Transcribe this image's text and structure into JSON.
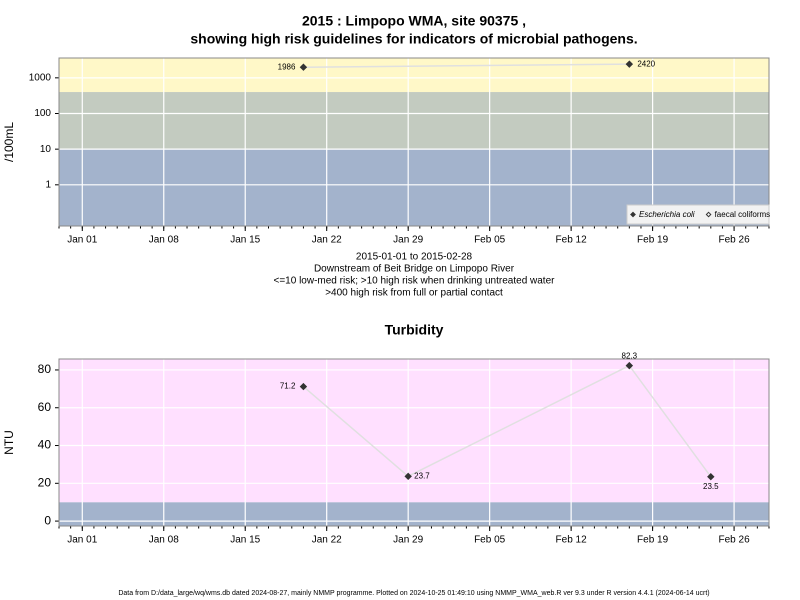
{
  "chart_data": [
    {
      "type": "line",
      "title": "2015 : Limpopo WMA, site 90375 ,",
      "subtitle": "showing high risk guidelines for indicators of microbial pathogens.",
      "ylabel": "/100mL",
      "log_y": true,
      "x": [
        "2015-01-20",
        "2015-02-17"
      ],
      "series": [
        {
          "name": "Escherichia coli",
          "color": "#333333",
          "marker": "filled",
          "values": [
            1986,
            2420
          ]
        },
        {
          "name": "faecal coliforms",
          "color": "#333333",
          "marker": "open",
          "values": [
            null,
            null
          ]
        }
      ],
      "line_color": "#e0e0e0",
      "xlim": [
        "2014-12-30",
        "2015-03-01"
      ],
      "xticks": [
        {
          "value": "2015-01-01",
          "label": "Jan 01"
        },
        {
          "value": "2015-01-08",
          "label": "Jan 08"
        },
        {
          "value": "2015-01-15",
          "label": "Jan 15"
        },
        {
          "value": "2015-01-22",
          "label": "Jan 22"
        },
        {
          "value": "2015-01-29",
          "label": "Jan 29"
        },
        {
          "value": "2015-02-05",
          "label": "Feb 05"
        },
        {
          "value": "2015-02-12",
          "label": "Feb 12"
        },
        {
          "value": "2015-02-19",
          "label": "Feb 19"
        },
        {
          "value": "2015-02-26",
          "label": "Feb 26"
        }
      ],
      "ylim": [
        0.07,
        3600
      ],
      "yticks": [
        1,
        10,
        100,
        1000
      ],
      "grid": true,
      "bands": [
        {
          "from": 0.07,
          "to": 10,
          "color": "#a3b3cc"
        },
        {
          "from": 10,
          "to": 400,
          "color": "#c3cbc0"
        },
        {
          "from": 400,
          "to": 3600,
          "color": "#fff8c8"
        }
      ],
      "legend": "bottom-right",
      "annotations": [
        "2015-01-01 to 2015-02-28",
        "Downstream of Beit Bridge on Limpopo River",
        "<=10 low-med risk; >10 high risk when drinking untreated water",
        ">400 high risk from full or partial contact"
      ]
    },
    {
      "type": "line",
      "title": "Turbidity",
      "ylabel": "NTU",
      "x": [
        "2015-01-20",
        "2015-01-29",
        "2015-02-17",
        "2015-02-24"
      ],
      "values": [
        71.2,
        23.7,
        82.3,
        23.5
      ],
      "color": "#333333",
      "line_color": "#e0e0e0",
      "xlim": [
        "2014-12-30",
        "2015-03-01"
      ],
      "xticks": [
        {
          "value": "2015-01-01",
          "label": "Jan 01"
        },
        {
          "value": "2015-01-08",
          "label": "Jan 08"
        },
        {
          "value": "2015-01-15",
          "label": "Jan 15"
        },
        {
          "value": "2015-01-22",
          "label": "Jan 22"
        },
        {
          "value": "2015-01-29",
          "label": "Jan 29"
        },
        {
          "value": "2015-02-05",
          "label": "Feb 05"
        },
        {
          "value": "2015-02-12",
          "label": "Feb 12"
        },
        {
          "value": "2015-02-19",
          "label": "Feb 19"
        },
        {
          "value": "2015-02-26",
          "label": "Feb 26"
        }
      ],
      "ylim": [
        -2.6,
        85.8
      ],
      "yticks": [
        0,
        20,
        40,
        60,
        80
      ],
      "grid": true,
      "bands": [
        {
          "from": -2.6,
          "to": 10,
          "color": "#a3b3cc"
        },
        {
          "from": 10,
          "to": 85.8,
          "color": "#ffe0ff"
        }
      ]
    }
  ],
  "footer": "Data from D:/data_large/wq/wms.db dated 2024-08-27, mainly NMMP programme. Plotted on 2024-10-25 01:49:10 using NMMP_WMA_web.R ver 9.3 under R version 4.4.1 (2024-06-14 ucrt)"
}
